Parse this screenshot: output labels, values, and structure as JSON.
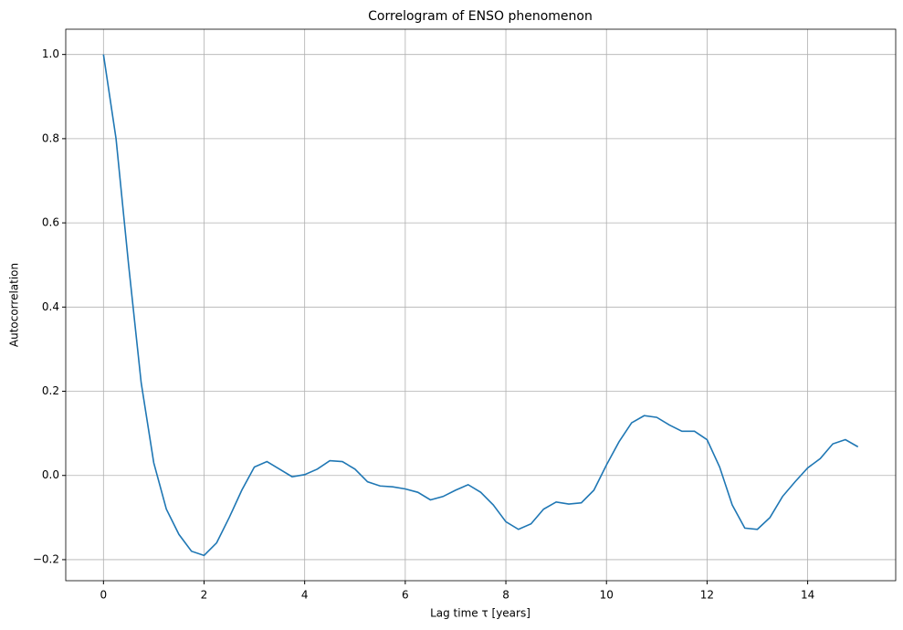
{
  "chart_data": {
    "type": "line",
    "title": "Correlogram of ENSO phenomenon",
    "xlabel": "Lag time τ [years]",
    "ylabel": "Autocorrelation",
    "x": [
      0,
      0.25,
      0.5,
      0.75,
      1,
      1.25,
      1.5,
      1.75,
      2,
      2.25,
      2.5,
      2.75,
      3,
      3.25,
      3.5,
      3.75,
      4,
      4.25,
      4.5,
      4.75,
      5,
      5.25,
      5.5,
      5.75,
      6,
      6.25,
      6.5,
      6.75,
      7,
      7.25,
      7.5,
      7.75,
      8,
      8.25,
      8.5,
      8.75,
      9,
      9.25,
      9.5,
      9.75,
      10,
      10.25,
      10.5,
      10.75,
      11,
      11.25,
      11.5,
      11.75,
      12,
      12.25,
      12.5,
      12.75,
      13,
      13.25,
      13.5,
      13.75,
      14,
      14.25,
      14.5,
      14.75,
      15
    ],
    "series": [
      {
        "color": "#1f77b4",
        "values": [
          1.0,
          0.8,
          0.5,
          0.22,
          0.03,
          -0.08,
          -0.14,
          -0.18,
          -0.19,
          -0.16,
          -0.1,
          -0.035,
          0.02,
          0.033,
          0.015,
          -0.003,
          0.002,
          0.015,
          0.035,
          0.033,
          0.015,
          -0.015,
          -0.025,
          -0.027,
          -0.032,
          -0.04,
          -0.058,
          -0.05,
          -0.035,
          -0.022,
          -0.04,
          -0.07,
          -0.11,
          -0.128,
          -0.115,
          -0.08,
          -0.063,
          -0.068,
          -0.065,
          -0.035,
          0.025,
          0.08,
          0.125,
          0.142,
          0.138,
          0.12,
          0.105,
          0.105,
          0.085,
          0.02,
          -0.07,
          -0.125,
          -0.128,
          -0.1,
          -0.05,
          -0.015,
          0.018,
          0.04,
          0.075,
          0.085,
          0.068
        ]
      }
    ],
    "xlim": [
      -0.75,
      15.75
    ],
    "ylim": [
      -0.25,
      1.06
    ],
    "xticks": [
      0,
      2,
      4,
      6,
      8,
      10,
      12,
      14
    ],
    "yticks": [
      {
        "value": -0.2,
        "label": "−0.2"
      },
      {
        "value": 0,
        "label": "0.0"
      },
      0.2,
      0.4,
      0.6,
      0.8,
      {
        "value": 1,
        "label": "1.0"
      }
    ],
    "grid": true
  }
}
